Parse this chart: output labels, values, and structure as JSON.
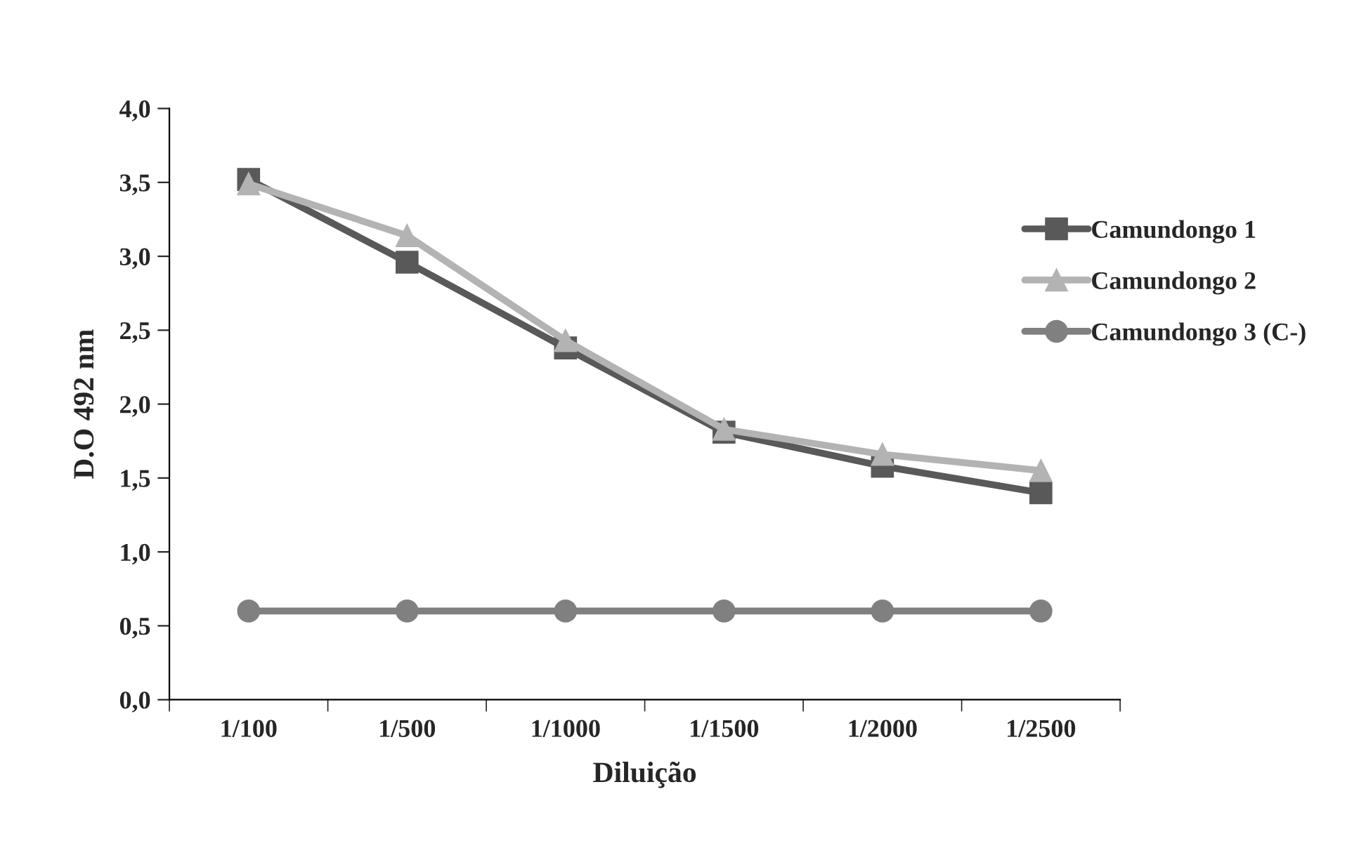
{
  "chart_data": {
    "type": "line",
    "xlabel": "Diluição",
    "ylabel": "D.O 492 nm",
    "categories": [
      "1/100",
      "1/500",
      "1/1000",
      "1/1500",
      "1/2000",
      "1/2500"
    ],
    "series": [
      {
        "name": "Camundongo 1",
        "color": "#595959",
        "marker": "square",
        "values": [
          3.52,
          2.96,
          2.38,
          1.81,
          1.58,
          1.4
        ]
      },
      {
        "name": "Camundongo 2",
        "color": "#b3b3b3",
        "marker": "triangle",
        "values": [
          3.49,
          3.14,
          2.43,
          1.83,
          1.66,
          1.55
        ]
      },
      {
        "name": "Camundongo 3 (C-)",
        "color": "#808080",
        "marker": "circle",
        "values": [
          0.6,
          0.6,
          0.6,
          0.6,
          0.6,
          0.6
        ]
      }
    ],
    "ylim": [
      0,
      4
    ],
    "yticks": [
      {
        "value": 0,
        "label": "0,0"
      },
      {
        "value": 0.5,
        "label": "0,5"
      },
      {
        "value": 1,
        "label": "1,0"
      },
      {
        "value": 1.5,
        "label": "1,5"
      },
      {
        "value": 2,
        "label": "2,0"
      },
      {
        "value": 2.5,
        "label": "2,5"
      },
      {
        "value": 3,
        "label": "3,0"
      },
      {
        "value": 3.5,
        "label": "3,5"
      },
      {
        "value": 4,
        "label": "4,0"
      }
    ],
    "grid": false,
    "legend": "top right",
    "line_style": "solid"
  }
}
